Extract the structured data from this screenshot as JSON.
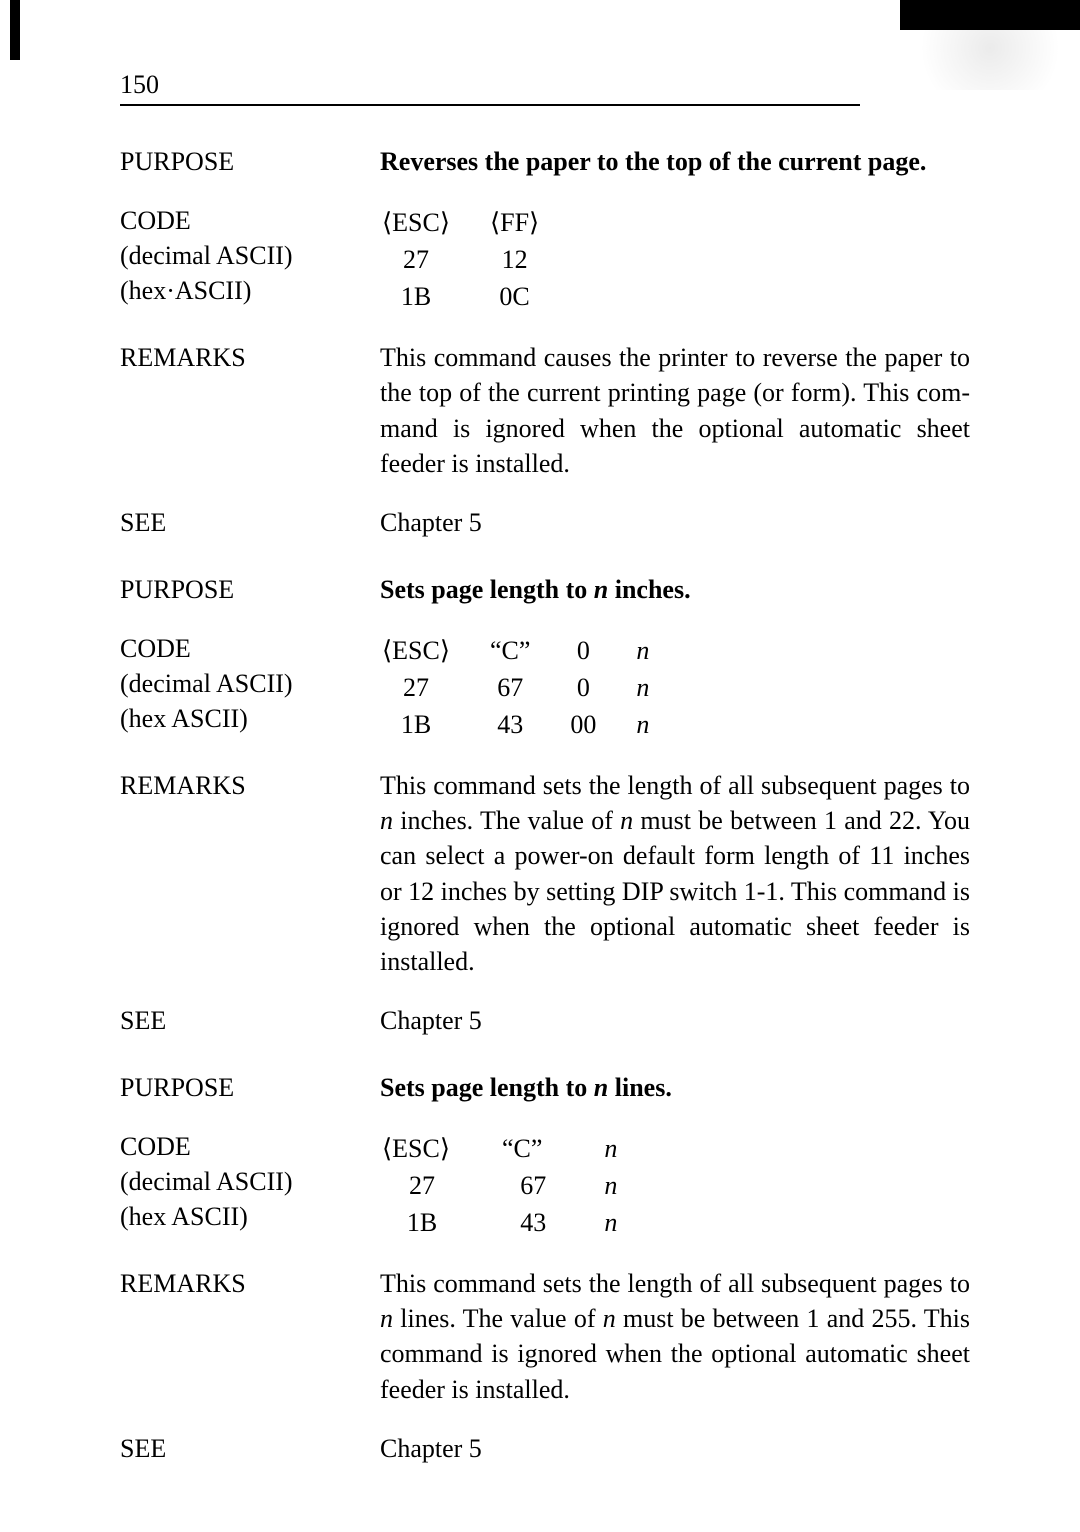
{
  "page_number": "150",
  "sections": [
    {
      "purpose_label": "PURPOSE",
      "purpose_text": "Reverses the paper to the top of the current page.",
      "code_label": "CODE",
      "code_sub1": "(decimal ASCII)",
      "code_sub2": "(hex·ASCII)",
      "code_cols": [
        [
          "⟨ESC⟩",
          "27",
          "1B"
        ],
        [
          "⟨FF⟩",
          "12",
          "0C"
        ]
      ],
      "remarks_label": "REMARKS",
      "remarks_text": "This command causes the printer to reverse the paper to the top of the cur­rent printing page (or form). This com­mand is ignored when the optional automatic sheet feeder is installed.",
      "see_label": "SEE",
      "see_text": "Chapter 5"
    },
    {
      "purpose_label": "PURPOSE",
      "purpose_text_pre": "Sets page length to ",
      "purpose_text_var": "n",
      "purpose_text_post": " inches.",
      "code_label": "CODE",
      "code_sub1": "(decimal ASCII)",
      "code_sub2": "(hex ASCII)",
      "code_cols": [
        [
          "⟨ESC⟩",
          "27",
          "1B"
        ],
        [
          "“C”",
          "67",
          "43"
        ],
        [
          "0",
          "0",
          "00"
        ],
        [
          "n",
          "n",
          "n"
        ]
      ],
      "remarks_label": "REMARKS",
      "remarks_pre": "This command sets the length of all subsequent pages to ",
      "remarks_var1": "n",
      "remarks_mid1": " inches. The value of ",
      "remarks_var2": "n",
      "remarks_mid2": " must be between 1 and 22. You can select a power-on default form length of 11 inches or 12 inches by setting DIP switch 1-1. This command is ignored when the optional automatic sheet feeder is installed.",
      "see_label": "SEE",
      "see_text": "Chapter 5"
    },
    {
      "purpose_label": "PURPOSE",
      "purpose_text_pre": "Sets page length to ",
      "purpose_text_var": "n",
      "purpose_text_post": " lines.",
      "code_label": "CODE",
      "code_sub1": "(decimal ASCII)",
      "code_sub2": "(hex ASCII)",
      "code_cols": [
        [
          "⟨ESC⟩",
          "27",
          "1B"
        ],
        [
          "“C”",
          "67",
          "43"
        ],
        [
          "n",
          "n",
          "n"
        ]
      ],
      "remarks_label": "REMARKS",
      "remarks_pre": "This command sets the length of all subsequent pages to ",
      "remarks_var1": "n",
      "remarks_mid1": " lines. The value of ",
      "remarks_var2": "n",
      "remarks_mid2": " must be between 1 and 255. This com­mand is ignored when the optional automatic sheet feeder is installed.",
      "see_label": "SEE",
      "see_text": "Chapter 5"
    }
  ]
}
